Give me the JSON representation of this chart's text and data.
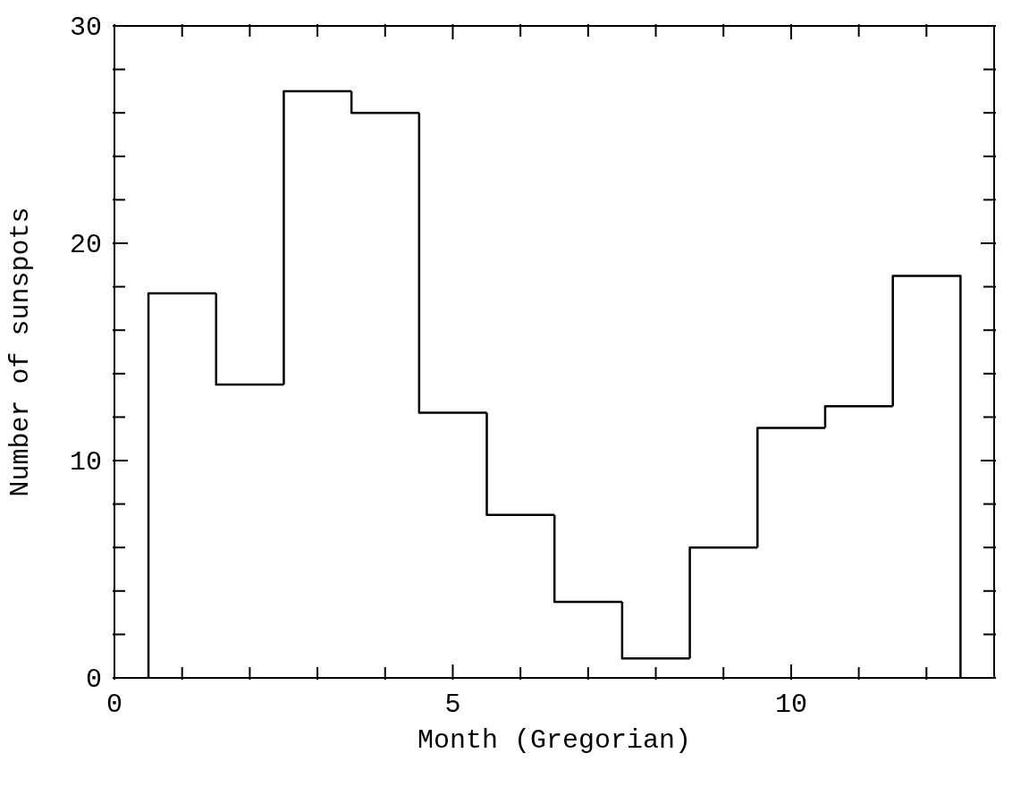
{
  "chart_data": {
    "type": "histogram",
    "xlabel": "Month (Gregorian)",
    "ylabel": "Number of sunspots",
    "bins": [
      0.5,
      1.5,
      2.5,
      3.5,
      4.5,
      5.5,
      6.5,
      7.5,
      8.5,
      9.5,
      10.5,
      11.5,
      12.5
    ],
    "values": [
      17.7,
      13.5,
      27.0,
      26.0,
      12.2,
      7.5,
      3.5,
      0.9,
      6.0,
      11.5,
      12.5,
      18.5
    ],
    "color": "#000000",
    "xlim": [
      0,
      13
    ],
    "xticks": [
      0,
      {
        "value": 1,
        "label": null
      },
      {
        "value": 2,
        "label": null
      },
      {
        "value": 3,
        "label": null
      },
      {
        "value": 4,
        "label": null
      },
      5,
      {
        "value": 6,
        "label": null
      },
      {
        "value": 7,
        "label": null
      },
      {
        "value": 8,
        "label": null
      },
      {
        "value": 9,
        "label": null
      },
      10,
      {
        "value": 11,
        "label": null
      },
      {
        "value": 12,
        "label": null
      }
    ],
    "ylim": [
      0,
      30
    ],
    "yticks": [
      0,
      {
        "value": 2,
        "label": null
      },
      {
        "value": 4,
        "label": null
      },
      {
        "value": 6,
        "label": null
      },
      {
        "value": 8,
        "label": null
      },
      10,
      {
        "value": 12,
        "label": null
      },
      {
        "value": 14,
        "label": null
      },
      {
        "value": 16,
        "label": null
      },
      {
        "value": 18,
        "label": null
      },
      20,
      {
        "value": 22,
        "label": null
      },
      {
        "value": 24,
        "label": null
      },
      {
        "value": 26,
        "label": null
      },
      {
        "value": 28,
        "label": null
      },
      30
    ]
  }
}
